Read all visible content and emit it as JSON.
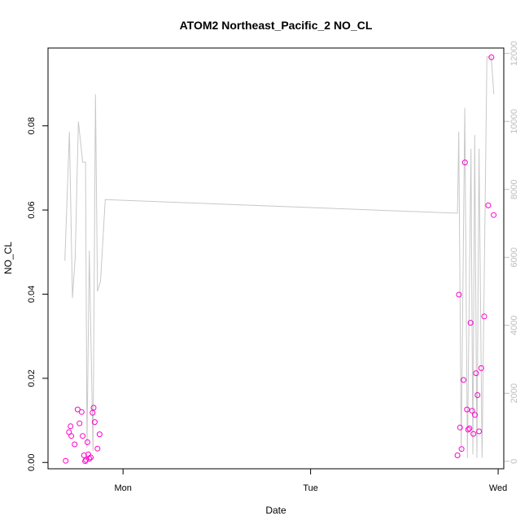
{
  "chart_data": {
    "type": "scatter",
    "title": "ATOM2 Northeast_Pacific_2 NO_CL",
    "xlabel": "Date",
    "ylabel": "NO_CL",
    "x_ticks": [
      "Mon",
      "Tue",
      "Wed"
    ],
    "x_tick_days": [
      1.0,
      2.0,
      3.0
    ],
    "xlim": [
      0.6,
      3.03
    ],
    "ylim_left": [
      -0.0015,
      0.0985
    ],
    "ylim_right": [
      -220,
      12160
    ],
    "y_ticks_left": [
      0.0,
      0.02,
      0.04,
      0.06,
      0.08
    ],
    "y_tick_labels_left": [
      "0.00",
      "0.02",
      "0.04",
      "0.06",
      "0.08"
    ],
    "y_ticks_right": [
      0,
      2000,
      4000,
      6000,
      8000,
      10000,
      12000
    ],
    "y_tick_labels_right": [
      "0",
      "2000",
      "4000",
      "6000",
      "8000",
      "10000",
      "12000"
    ],
    "grid": false,
    "series": [
      {
        "axis": "left",
        "mark": "points",
        "color": "#ff00cc",
        "x": [
          0.694,
          0.712,
          0.72,
          0.724,
          0.742,
          0.758,
          0.768,
          0.779,
          0.785,
          0.792,
          0.798,
          0.802,
          0.81,
          0.815,
          0.82,
          0.828,
          0.838,
          0.843,
          0.849,
          0.864,
          0.875,
          2.783,
          2.791,
          2.797,
          2.805,
          2.815,
          2.823,
          2.834,
          2.84,
          2.847,
          2.853,
          2.861,
          2.868,
          2.876,
          2.882,
          2.89,
          2.898,
          2.91,
          2.926,
          2.947,
          2.964,
          2.976
        ],
        "y": [
          0.0004,
          0.0072,
          0.0086,
          0.0063,
          0.0043,
          0.0126,
          0.0093,
          0.012,
          0.0063,
          0.0017,
          0.0003,
          0.0006,
          0.0048,
          0.0019,
          0.0009,
          0.0012,
          0.0118,
          0.013,
          0.0096,
          0.0033,
          0.0067,
          0.0017,
          0.0399,
          0.0083,
          0.0032,
          0.0196,
          0.0713,
          0.0126,
          0.0078,
          0.0081,
          0.0332,
          0.0123,
          0.0068,
          0.0113,
          0.0212,
          0.016,
          0.0074,
          0.0224,
          0.0347,
          0.0611,
          0.0963,
          0.0588
        ]
      },
      {
        "axis": "right",
        "mark": "line",
        "color": "#c8c8c8",
        "x": [
          0.69,
          0.714,
          0.73,
          0.745,
          0.762,
          0.785,
          0.8,
          0.808,
          0.82,
          0.84,
          0.853,
          0.864,
          0.88,
          0.905,
          2.783,
          2.79,
          2.803,
          2.822,
          2.836,
          2.855,
          2.865,
          2.875,
          2.887,
          2.898,
          2.914,
          2.94,
          2.963,
          2.977
        ],
        "y": [
          5900,
          9700,
          4800,
          6000,
          10000,
          8800,
          8800,
          400,
          6200,
          300,
          10800,
          5000,
          5300,
          7700,
          7300,
          9700,
          300,
          10400,
          100,
          9200,
          200,
          9600,
          100,
          9200,
          100,
          11900,
          11900,
          10800
        ]
      }
    ]
  }
}
